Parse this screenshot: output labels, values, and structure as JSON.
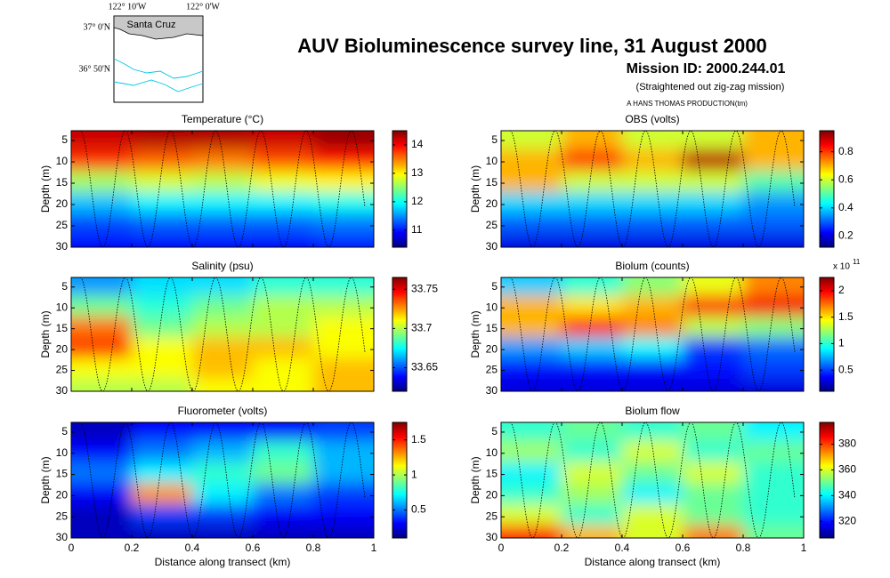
{
  "header": {
    "title": "AUV Bioluminescence survey line, 31 August 2000",
    "mission": "Mission ID: 2000.244.01",
    "note": "(Straightened out zig-zag mission)",
    "credit": "A HANS THOMAS PRODUCTION(tm)"
  },
  "inset": {
    "lon_labels": [
      "122° 10'W",
      "122° 0'W"
    ],
    "lat_labels": [
      "37° 0'N",
      "36° 50'N"
    ],
    "place": "Santa Cruz"
  },
  "chart_data": [
    {
      "type": "heatmap",
      "title": "Temperature (°C)",
      "ylabel": "Depth (m)",
      "xlim": [
        0,
        1
      ],
      "xticks": [
        0,
        0.2,
        0.4,
        0.6,
        0.8,
        1
      ],
      "show_xticklabels": false,
      "ylim": [
        2.7,
        30
      ],
      "yticks": [
        5,
        10,
        15,
        20,
        25,
        30
      ],
      "y_inverted": true,
      "colormap": "jet",
      "x": [
        0.1,
        0.3,
        0.5,
        0.7,
        0.9
      ],
      "y": [
        4.5,
        9.5,
        14.5,
        19.5,
        24.5,
        29.5
      ],
      "z": [
        [
          14.2,
          14.3,
          14.3,
          14.2,
          14.4
        ],
        [
          13.8,
          13.6,
          13.5,
          13.7,
          13.9
        ],
        [
          12.6,
          12.8,
          12.7,
          12.9,
          13.0
        ],
        [
          11.7,
          11.9,
          11.9,
          11.9,
          12.0
        ],
        [
          11.2,
          11.3,
          11.3,
          11.3,
          11.4
        ],
        [
          10.9,
          10.9,
          10.9,
          10.9,
          11.0
        ]
      ],
      "clim": [
        10.4,
        14.5
      ],
      "cticks": [
        11,
        12,
        13,
        14
      ]
    },
    {
      "type": "heatmap",
      "title": "OBS (volts)",
      "ylabel": "Depth (m)",
      "xlim": [
        0,
        1
      ],
      "xticks": [
        0,
        0.2,
        0.4,
        0.6,
        0.8,
        1
      ],
      "show_xticklabels": false,
      "ylim": [
        2.7,
        30
      ],
      "yticks": [
        5,
        10,
        15,
        20,
        25,
        30
      ],
      "y_inverted": true,
      "colormap": "jet",
      "x": [
        0.1,
        0.3,
        0.5,
        0.7,
        0.9
      ],
      "y": [
        4.5,
        9.5,
        14.5,
        19.5,
        24.5,
        29.5
      ],
      "z": [
        [
          0.6,
          0.7,
          0.6,
          0.6,
          0.7
        ],
        [
          0.7,
          0.8,
          0.7,
          0.9,
          0.7
        ],
        [
          0.7,
          0.6,
          0.6,
          0.6,
          0.5
        ],
        [
          0.4,
          0.4,
          0.4,
          0.4,
          0.35
        ],
        [
          0.3,
          0.3,
          0.3,
          0.3,
          0.3
        ],
        [
          0.2,
          0.2,
          0.2,
          0.2,
          0.2
        ]
      ],
      "clim": [
        0.12,
        0.95
      ],
      "cticks": [
        0.2,
        0.4,
        0.6,
        0.8
      ]
    },
    {
      "type": "heatmap",
      "title": "Salinity (psu)",
      "ylabel": "Depth (m)",
      "xlim": [
        0,
        1
      ],
      "xticks": [
        0,
        0.2,
        0.4,
        0.6,
        0.8,
        1
      ],
      "show_xticklabels": false,
      "ylim": [
        2.7,
        30
      ],
      "yticks": [
        5,
        10,
        15,
        20,
        25,
        30
      ],
      "y_inverted": true,
      "colormap": "jet",
      "x": [
        0.1,
        0.3,
        0.5,
        0.7,
        0.9
      ],
      "y": [
        4.5,
        9.5,
        14.5,
        19.5,
        24.5,
        29.5
      ],
      "z": [
        [
          33.66,
          33.67,
          33.67,
          33.68,
          33.68
        ],
        [
          33.69,
          33.68,
          33.69,
          33.7,
          33.7
        ],
        [
          33.73,
          33.69,
          33.7,
          33.7,
          33.71
        ],
        [
          33.74,
          33.71,
          33.72,
          33.72,
          33.71
        ],
        [
          33.71,
          33.71,
          33.72,
          33.71,
          33.72
        ],
        [
          33.7,
          33.7,
          33.71,
          33.71,
          33.72
        ]
      ],
      "clim": [
        33.62,
        33.765
      ],
      "cticks": [
        33.65,
        33.7,
        33.75
      ]
    },
    {
      "type": "heatmap",
      "title": "Biolum (counts)",
      "ylabel": "Depth (m)",
      "xlim": [
        0,
        1
      ],
      "xticks": [
        0,
        0.2,
        0.4,
        0.6,
        0.8,
        1
      ],
      "show_xticklabels": false,
      "ylim": [
        2.7,
        30
      ],
      "yticks": [
        5,
        10,
        15,
        20,
        25,
        30
      ],
      "y_inverted": true,
      "colormap": "jet",
      "x": [
        0.1,
        0.3,
        0.5,
        0.7,
        0.9
      ],
      "y": [
        4.5,
        9.5,
        14.5,
        19.5,
        24.5,
        29.5
      ],
      "z": [
        [
          0.8,
          1.0,
          1.2,
          1.4,
          1.7
        ],
        [
          1.6,
          1.5,
          1.6,
          1.9,
          2.0
        ],
        [
          1.6,
          1.9,
          1.7,
          1.3,
          1.2
        ],
        [
          0.7,
          0.8,
          0.9,
          0.5,
          0.6
        ],
        [
          0.4,
          0.4,
          0.4,
          0.4,
          0.5
        ],
        [
          0.3,
          0.3,
          0.3,
          0.3,
          0.3
        ]
      ],
      "clim": [
        0.1,
        2.25
      ],
      "cticks": [
        0.5,
        1,
        1.5,
        2
      ],
      "colorbar_multiplier": {
        "base": "x 10",
        "exponent": "11"
      }
    },
    {
      "type": "heatmap",
      "title": "Fluorometer (volts)",
      "ylabel": "Depth (m)",
      "xlabel": "Distance along transect (km)",
      "xlim": [
        0,
        1
      ],
      "xticks": [
        0,
        0.2,
        0.4,
        0.6,
        0.8,
        1
      ],
      "show_xticklabels": true,
      "ylim": [
        2.7,
        30
      ],
      "yticks": [
        5,
        10,
        15,
        20,
        25,
        30
      ],
      "y_inverted": true,
      "colormap": "jet",
      "x": [
        0.1,
        0.3,
        0.5,
        0.7,
        0.9
      ],
      "y": [
        4.5,
        9.5,
        14.5,
        19.5,
        24.5,
        29.5
      ],
      "z": [
        [
          0.2,
          0.3,
          0.3,
          0.3,
          0.4
        ],
        [
          0.3,
          0.5,
          0.6,
          0.8,
          0.6
        ],
        [
          0.5,
          0.7,
          0.8,
          0.9,
          0.6
        ],
        [
          0.3,
          1.3,
          0.7,
          0.5,
          0.4
        ],
        [
          0.2,
          0.4,
          0.4,
          0.3,
          0.3
        ],
        [
          0.2,
          0.2,
          0.2,
          0.2,
          0.2
        ]
      ],
      "clim": [
        0.1,
        1.75
      ],
      "cticks": [
        0.5,
        1,
        1.5
      ]
    },
    {
      "type": "heatmap",
      "title": "Biolum flow",
      "ylabel": "Depth (m)",
      "xlabel": "Distance along transect (km)",
      "xlim": [
        0,
        1
      ],
      "xticks": [
        0,
        0.2,
        0.4,
        0.6,
        0.8,
        1
      ],
      "show_xticklabels": true,
      "ylim": [
        2.7,
        30
      ],
      "yticks": [
        5,
        10,
        15,
        20,
        25,
        30
      ],
      "y_inverted": true,
      "colormap": "jet",
      "x": [
        0.1,
        0.3,
        0.5,
        0.7,
        0.9
      ],
      "y": [
        4.5,
        9.5,
        14.5,
        19.5,
        24.5,
        29.5
      ],
      "z": [
        [
          345,
          350,
          345,
          350,
          340
        ],
        [
          355,
          345,
          360,
          345,
          350
        ],
        [
          340,
          360,
          350,
          360,
          345
        ],
        [
          345,
          355,
          340,
          350,
          345
        ],
        [
          360,
          345,
          360,
          350,
          345
        ],
        [
          385,
          370,
          360,
          375,
          350
        ]
      ],
      "clim": [
        307,
        397
      ],
      "cticks": [
        320,
        340,
        360,
        380
      ]
    }
  ]
}
